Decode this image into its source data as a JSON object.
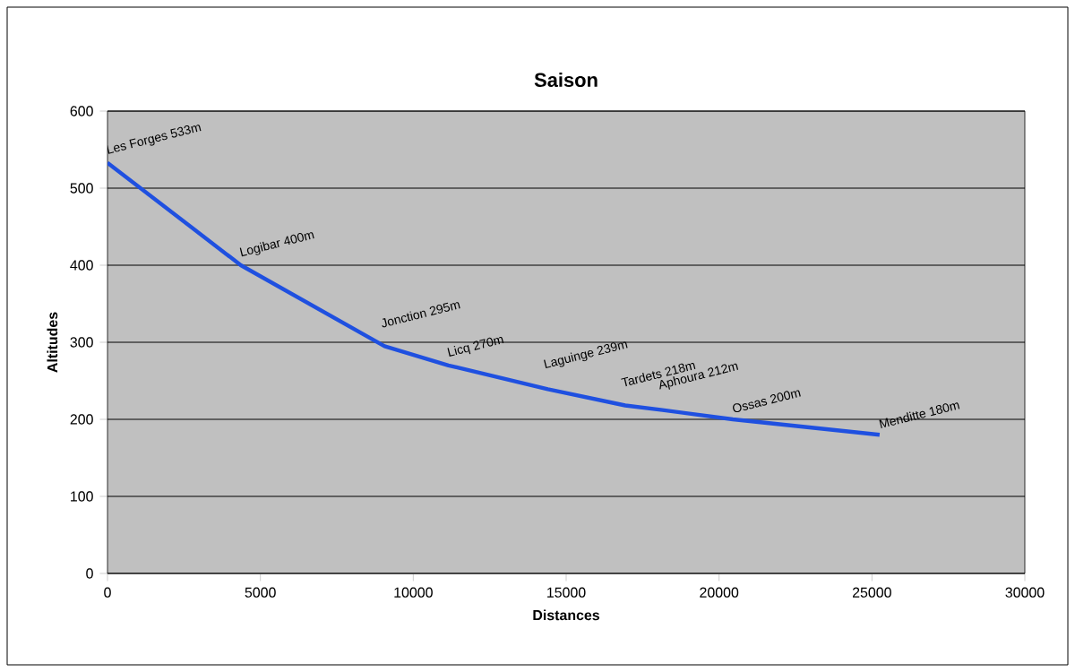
{
  "chart_data": {
    "type": "line",
    "title": "Saison",
    "xlabel": "Distances",
    "ylabel": "Altitudes",
    "x": [
      0,
      4360,
      9060,
      11150,
      14400,
      16930,
      18150,
      20450,
      25250
    ],
    "series": [
      {
        "color": "#1f50e0",
        "values": [
          533,
          400,
          295,
          270,
          239,
          218,
          212,
          200,
          180
        ]
      }
    ],
    "xlim": [
      0,
      30000
    ],
    "xticks": [
      0,
      5000,
      10000,
      15000,
      20000,
      25000,
      30000
    ],
    "ylim": [
      0,
      600
    ],
    "yticks": [
      0,
      100,
      200,
      300,
      400,
      500,
      600
    ],
    "grid": "y",
    "marker": "none",
    "line_style": "solid",
    "annotations": [
      {
        "text": "Les Forges 533m",
        "x": 0,
        "y": 533
      },
      {
        "text": "Logibar 400m",
        "x": 4360,
        "y": 400
      },
      {
        "text": "Jonction 295m",
        "x": 9060,
        "y": 295
      },
      {
        "text": "Licq 270m",
        "x": 11150,
        "y": 270
      },
      {
        "text": "Laguinge 239m",
        "x": 14400,
        "y": 239
      },
      {
        "text": "Tardets 218m",
        "x": 16930,
        "y": 218
      },
      {
        "text": "Aphoura 212m",
        "x": 18150,
        "y": 212
      },
      {
        "text": "Ossas 200m",
        "x": 20450,
        "y": 200
      },
      {
        "text": "Menditte 180m",
        "x": 25250,
        "y": 180
      }
    ]
  }
}
